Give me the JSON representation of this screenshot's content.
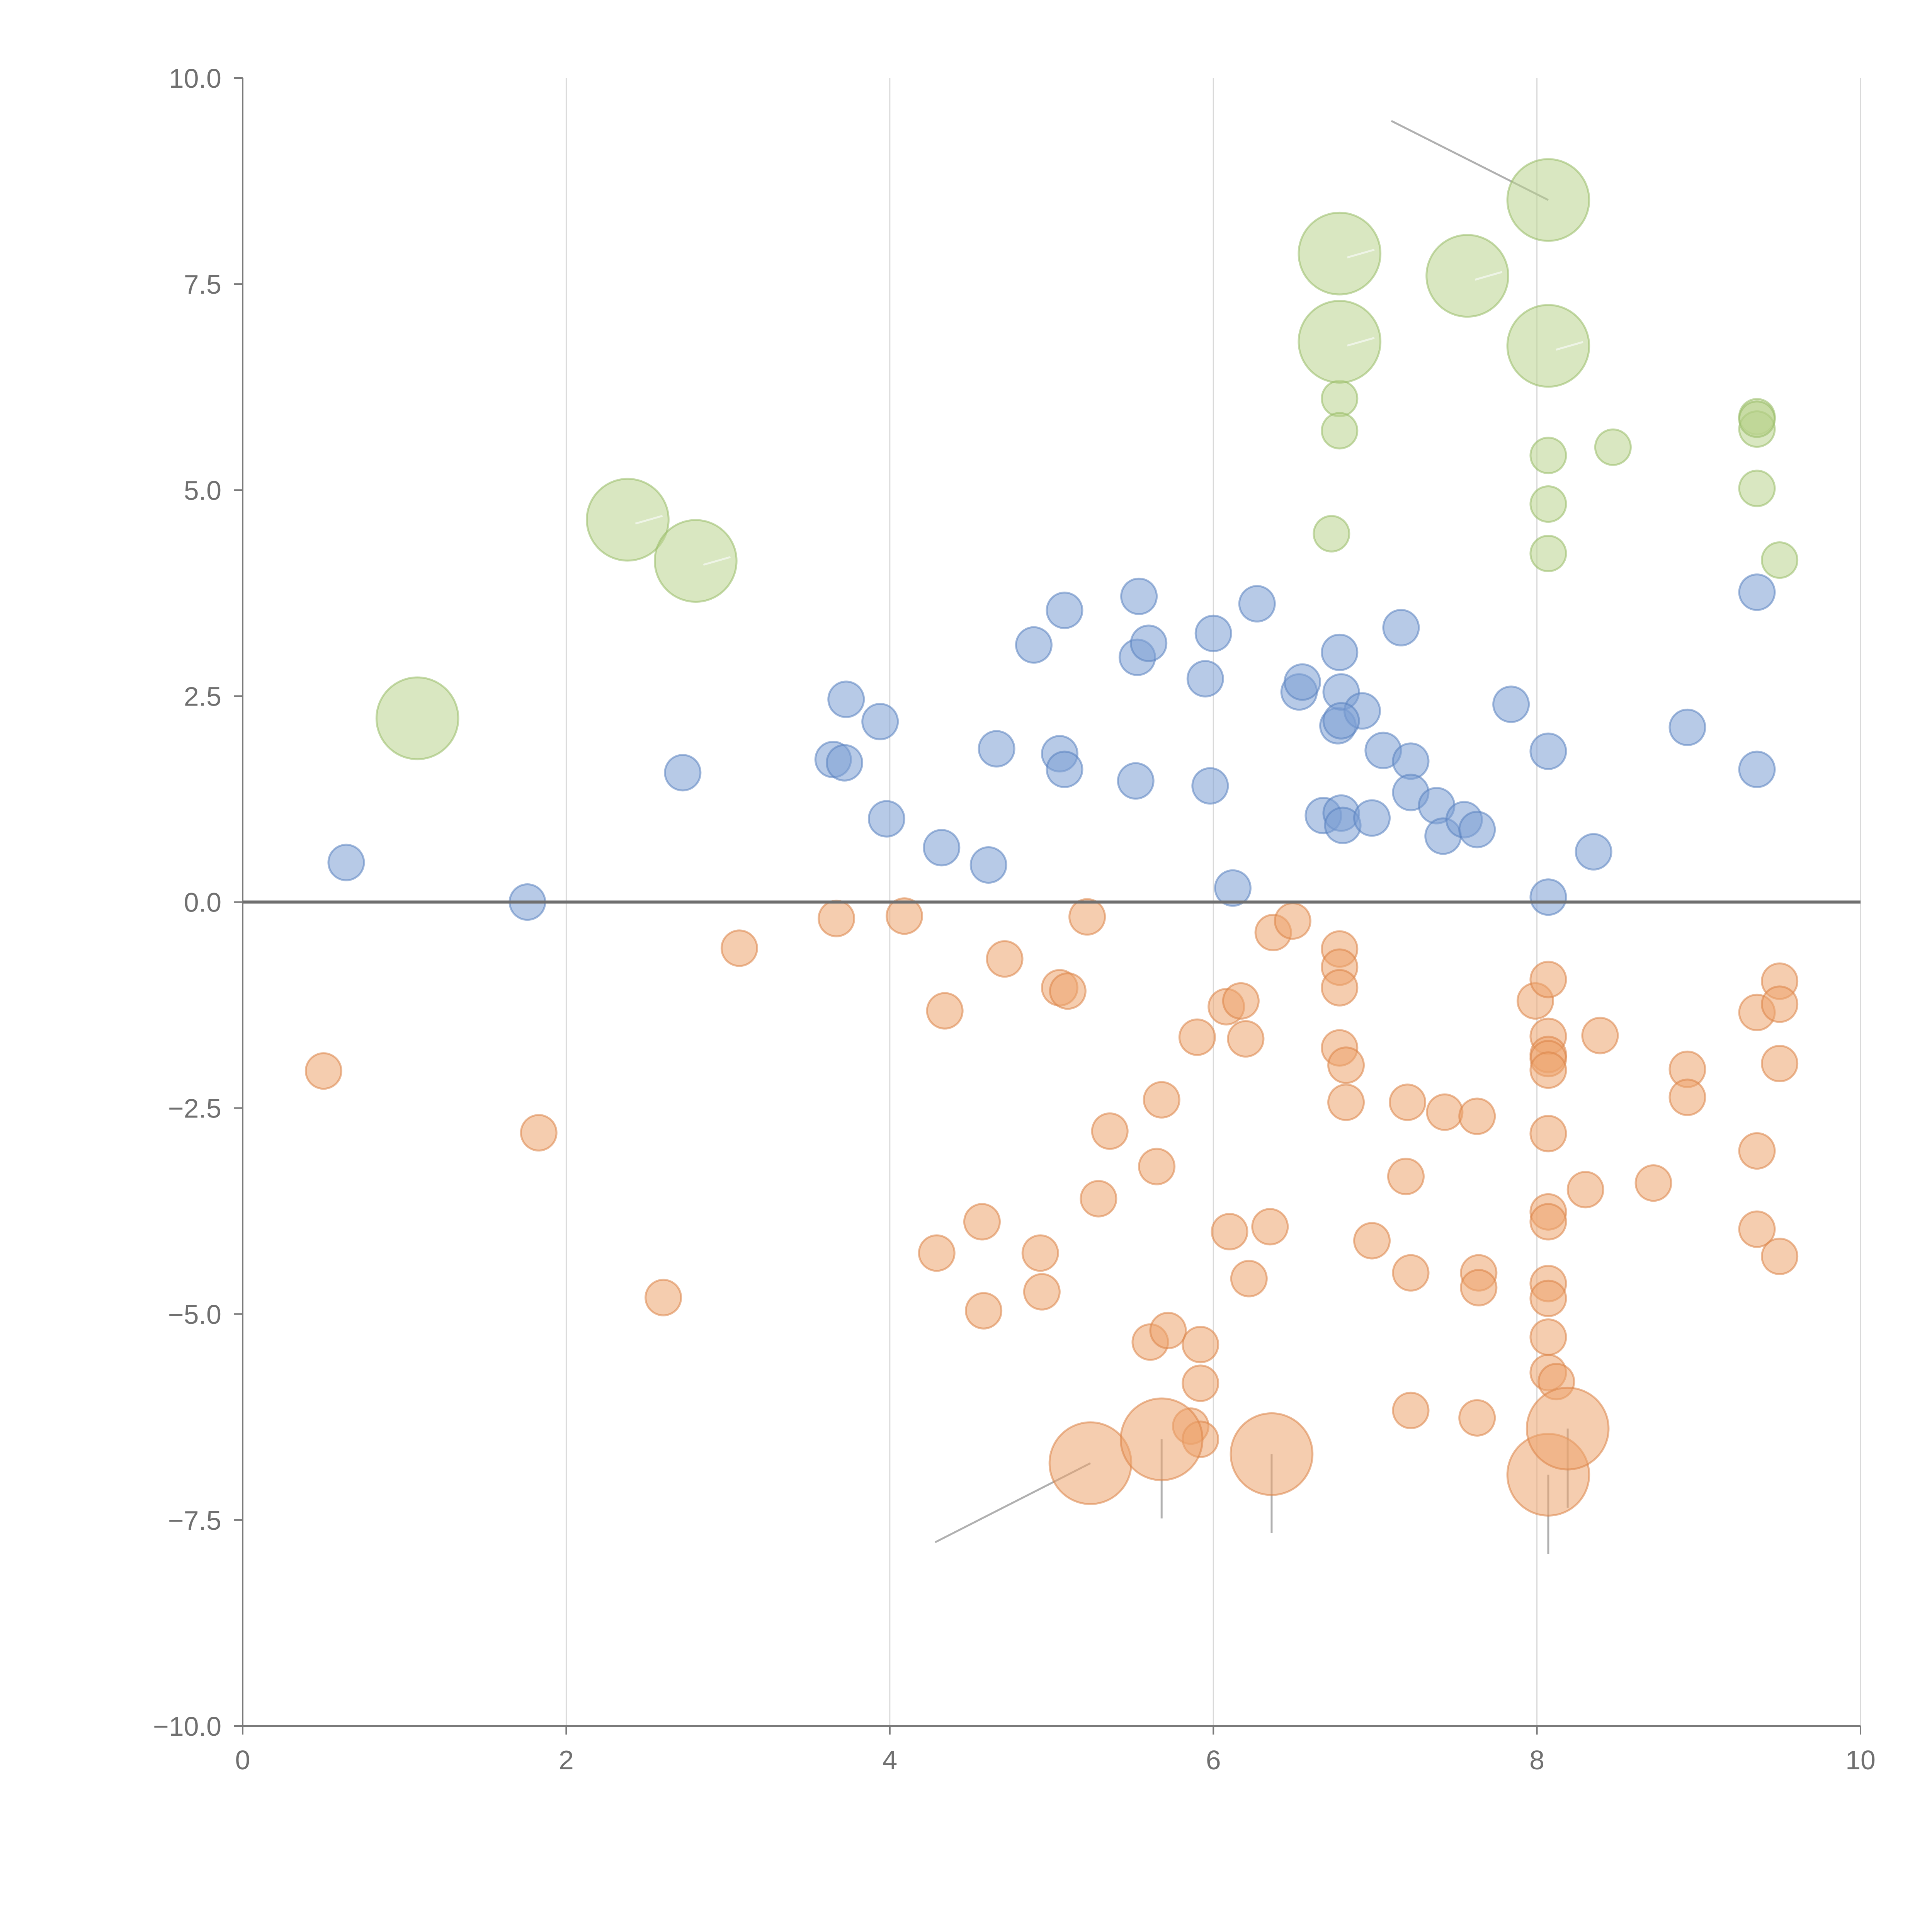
{
  "chart_data": {
    "type": "scatter",
    "title": "",
    "xlabel": "",
    "ylabel": "",
    "xlim": [
      0,
      10
    ],
    "ylim": [
      -10,
      10
    ],
    "xticks": [
      "0",
      "2",
      "4",
      "6",
      "8",
      "10"
    ],
    "xtick_values": [
      0,
      2,
      4,
      6,
      8,
      10
    ],
    "yticks": [
      "10.0",
      "7.5",
      "5.0",
      "2.5",
      "0.0",
      "−2.5",
      "−5.0",
      "−7.5",
      "−10.0"
    ],
    "ytick_values": [
      10,
      7.5,
      5,
      2.5,
      0,
      -2.5,
      -5,
      -7.5,
      -10
    ],
    "grid_x": true,
    "grid_y": false,
    "zero_line": true,
    "legend": "none",
    "colors": {
      "blue": "#7b9fd4",
      "blue_stroke": "#5a82c0",
      "orange": "#eda46e",
      "orange_stroke": "#db8347",
      "green": "#b9d48e",
      "green_stroke": "#98bb66",
      "axis": "#7a7a7a",
      "grid": "#d9d9d9"
    },
    "series": [
      {
        "name": "blue",
        "color": "#7b9fd4",
        "points": [
          [
            0.64,
            0.48,
            1
          ],
          [
            1.76,
            0.0,
            1
          ],
          [
            2.72,
            1.57,
            1
          ],
          [
            3.65,
            1.73,
            1
          ],
          [
            3.72,
            1.69,
            1
          ],
          [
            3.73,
            2.46,
            1
          ],
          [
            3.94,
            2.19,
            1
          ],
          [
            3.98,
            1.01,
            1
          ],
          [
            4.32,
            0.66,
            1
          ],
          [
            4.61,
            0.45,
            1
          ],
          [
            4.66,
            1.86,
            1
          ],
          [
            4.89,
            3.12,
            1
          ],
          [
            5.05,
            1.8,
            1
          ],
          [
            5.08,
            3.54,
            1
          ],
          [
            5.08,
            1.61,
            1
          ],
          [
            5.52,
            1.47,
            1
          ],
          [
            5.53,
            2.97,
            1
          ],
          [
            5.54,
            3.71,
            1
          ],
          [
            5.6,
            3.14,
            1
          ],
          [
            5.95,
            2.71,
            1
          ],
          [
            5.98,
            1.41,
            1
          ],
          [
            6.0,
            3.26,
            1
          ],
          [
            6.12,
            0.17,
            1
          ],
          [
            6.27,
            3.62,
            1
          ],
          [
            6.53,
            2.55,
            1
          ],
          [
            6.55,
            2.67,
            1
          ],
          [
            6.68,
            1.05,
            1
          ],
          [
            6.77,
            2.14,
            1
          ],
          [
            6.78,
            3.03,
            1
          ],
          [
            6.79,
            2.55,
            1
          ],
          [
            6.79,
            1.08,
            1
          ],
          [
            6.8,
            0.93,
            1
          ],
          [
            6.92,
            2.32,
            1
          ],
          [
            6.98,
            1.02,
            1
          ],
          [
            7.05,
            1.84,
            1
          ],
          [
            7.16,
            3.33,
            1
          ],
          [
            7.22,
            1.71,
            1
          ],
          [
            7.22,
            1.33,
            1
          ],
          [
            7.38,
            1.17,
            1
          ],
          [
            7.42,
            0.8,
            1
          ],
          [
            7.55,
            1.0,
            1
          ],
          [
            7.63,
            0.88,
            1
          ],
          [
            7.84,
            2.4,
            1
          ],
          [
            8.07,
            1.83,
            1
          ],
          [
            8.07,
            0.06,
            1
          ],
          [
            8.35,
            0.61,
            1
          ],
          [
            8.93,
            2.12,
            1
          ],
          [
            9.36,
            3.76,
            1
          ],
          [
            9.36,
            1.61,
            1
          ],
          [
            6.79,
            2.2,
            1
          ]
        ]
      },
      {
        "name": "orange",
        "color": "#eda46e",
        "points": [
          [
            0.5,
            -2.05,
            1
          ],
          [
            1.83,
            -2.8,
            1
          ],
          [
            2.6,
            -4.8,
            1
          ],
          [
            3.07,
            -0.56,
            1
          ],
          [
            3.67,
            -0.2,
            1
          ],
          [
            4.09,
            -0.17,
            1
          ],
          [
            4.29,
            -4.26,
            1
          ],
          [
            4.34,
            -1.32,
            1
          ],
          [
            4.57,
            -3.88,
            1
          ],
          [
            4.58,
            -4.96,
            1
          ],
          [
            4.71,
            -0.69,
            1
          ],
          [
            4.93,
            -4.26,
            1
          ],
          [
            4.94,
            -4.73,
            1
          ],
          [
            5.05,
            -1.04,
            1
          ],
          [
            5.1,
            -1.08,
            1
          ],
          [
            5.22,
            -0.18,
            1
          ],
          [
            5.29,
            -3.6,
            1
          ],
          [
            5.36,
            -2.78,
            1
          ],
          [
            5.61,
            -5.34,
            1
          ],
          [
            5.65,
            -3.21,
            1
          ],
          [
            5.68,
            -2.4,
            1
          ],
          [
            5.72,
            -5.2,
            1
          ],
          [
            5.86,
            -6.36,
            1
          ],
          [
            5.9,
            -1.64,
            1
          ],
          [
            5.92,
            -5.37,
            1
          ],
          [
            5.92,
            -5.84,
            1
          ],
          [
            5.92,
            -6.52,
            1
          ],
          [
            6.08,
            -1.27,
            1
          ],
          [
            6.1,
            -4.0,
            1
          ],
          [
            6.17,
            -1.2,
            1
          ],
          [
            6.2,
            -1.66,
            1
          ],
          [
            6.22,
            -4.57,
            1
          ],
          [
            6.35,
            -3.94,
            1
          ],
          [
            6.37,
            -0.37,
            1
          ],
          [
            6.49,
            -0.23,
            1
          ],
          [
            6.78,
            -0.57,
            1
          ],
          [
            6.78,
            -0.79,
            1
          ],
          [
            6.78,
            -1.04,
            1
          ],
          [
            6.78,
            -1.77,
            1
          ],
          [
            6.82,
            -1.98,
            1
          ],
          [
            6.82,
            -2.43,
            1
          ],
          [
            6.98,
            -4.11,
            1
          ],
          [
            7.2,
            -2.43,
            1
          ],
          [
            7.19,
            -3.33,
            1
          ],
          [
            7.22,
            -4.5,
            1
          ],
          [
            7.22,
            -6.17,
            1
          ],
          [
            7.43,
            -2.55,
            1
          ],
          [
            7.63,
            -2.6,
            1
          ],
          [
            7.64,
            -4.5,
            1
          ],
          [
            7.64,
            -4.68,
            1
          ],
          [
            7.63,
            -6.26,
            1
          ],
          [
            7.99,
            -1.2,
            1
          ],
          [
            8.07,
            -0.94,
            1
          ],
          [
            8.07,
            -1.63,
            1
          ],
          [
            8.07,
            -1.85,
            1
          ],
          [
            8.07,
            -1.9,
            1
          ],
          [
            8.07,
            -2.04,
            1
          ],
          [
            8.07,
            -2.81,
            1
          ],
          [
            8.07,
            -3.76,
            1
          ],
          [
            8.07,
            -3.88,
            1
          ],
          [
            8.07,
            -4.63,
            1
          ],
          [
            8.07,
            -4.81,
            1
          ],
          [
            8.07,
            -5.28,
            1
          ],
          [
            8.07,
            -5.71,
            1
          ],
          [
            8.12,
            -5.82,
            1
          ],
          [
            8.3,
            -3.49,
            1
          ],
          [
            8.39,
            -1.62,
            1
          ],
          [
            8.72,
            -3.41,
            1
          ],
          [
            8.93,
            -2.03,
            1
          ],
          [
            8.93,
            -2.37,
            1
          ],
          [
            9.36,
            -1.34,
            1
          ],
          [
            9.36,
            -3.02,
            1
          ],
          [
            9.36,
            -3.97,
            1
          ],
          [
            9.5,
            -0.96,
            1
          ],
          [
            9.5,
            -1.24,
            1
          ],
          [
            9.5,
            -1.96,
            1
          ],
          [
            9.5,
            -4.3,
            1
          ],
          [
            5.24,
            -6.81,
            2.3
          ],
          [
            5.68,
            -6.52,
            2.3
          ],
          [
            6.36,
            -6.7,
            2.3
          ],
          [
            8.07,
            -6.95,
            2.3
          ],
          [
            8.19,
            -6.39,
            2.3
          ]
        ]
      },
      {
        "name": "green",
        "color": "#b9d48e",
        "points": [
          [
            6.73,
            4.47,
            1
          ],
          [
            6.78,
            6.11,
            1
          ],
          [
            6.78,
            5.72,
            1
          ],
          [
            8.07,
            5.42,
            1
          ],
          [
            8.07,
            4.83,
            1
          ],
          [
            8.07,
            4.23,
            1
          ],
          [
            8.47,
            5.52,
            1
          ],
          [
            9.36,
            5.89,
            1
          ],
          [
            9.36,
            5.74,
            1
          ],
          [
            9.36,
            5.02,
            1
          ],
          [
            9.5,
            4.15,
            1
          ],
          [
            9.36,
            5.86,
            1
          ],
          [
            1.08,
            2.23,
            2.3
          ],
          [
            2.38,
            4.64,
            2.3
          ],
          [
            2.8,
            4.14,
            2.3
          ],
          [
            6.78,
            7.87,
            2.3
          ],
          [
            6.78,
            6.8,
            2.3
          ],
          [
            7.57,
            7.6,
            2.3
          ],
          [
            8.07,
            8.52,
            2.3
          ],
          [
            8.07,
            6.75,
            2.3
          ]
        ]
      }
    ],
    "annotations": [
      {
        "point": [
          8.07,
          8.52
        ],
        "text_pos": [
          7.1,
          9.48
        ]
      },
      {
        "point": [
          5.24,
          -6.81
        ],
        "text_pos": [
          4.28,
          -7.77
        ]
      },
      {
        "point": [
          5.68,
          -6.52
        ],
        "text_pos": [
          5.68,
          -7.48
        ]
      },
      {
        "point": [
          6.36,
          -6.7
        ],
        "text_pos": [
          6.36,
          -7.66
        ]
      },
      {
        "point": [
          8.07,
          -6.95
        ],
        "text_pos": [
          8.07,
          -7.91
        ]
      },
      {
        "point": [
          8.19,
          -6.39
        ],
        "text_pos": [
          8.19,
          -7.35
        ]
      }
    ]
  }
}
